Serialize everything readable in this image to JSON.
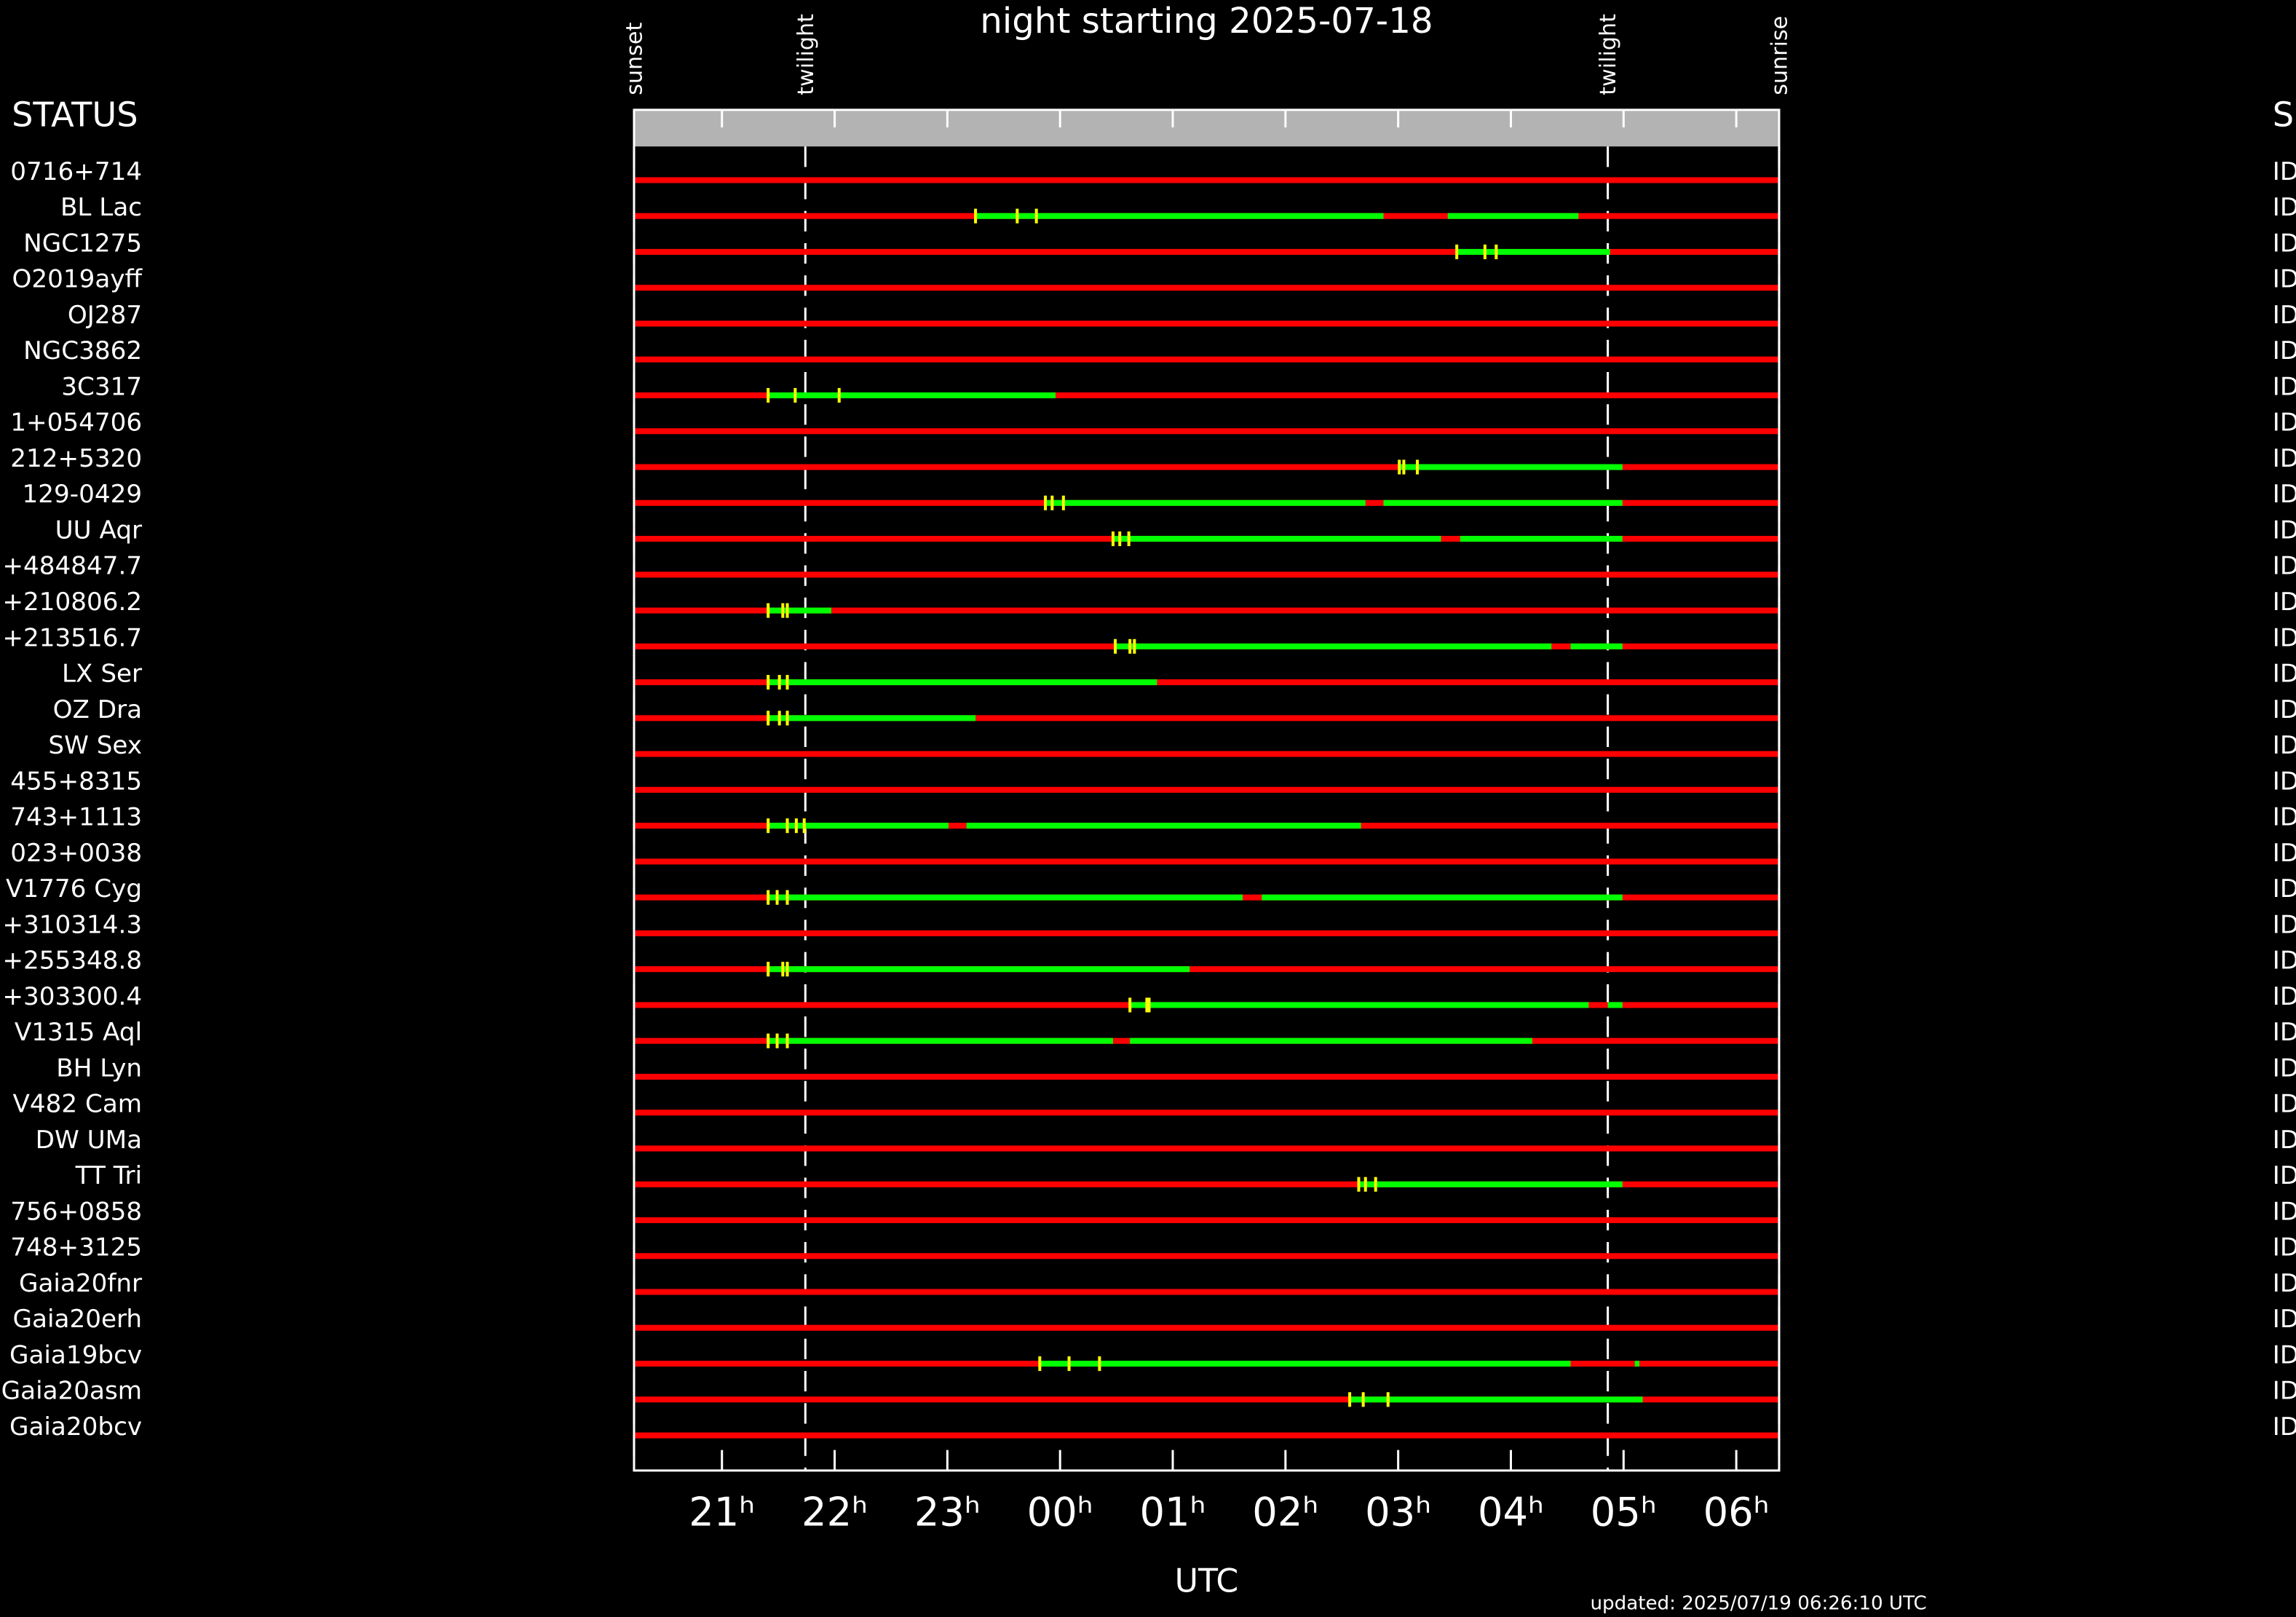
{
  "chart_data": {
    "type": "timeline",
    "title": "night starting 2025-07-18",
    "xlabel": "UTC",
    "footer": "updated: 2025/07/19 06:26:10 UTC",
    "status_header": "STATUS",
    "status_header_right": "S",
    "xlim": [
      20.22,
      30.38
    ],
    "xticks": [
      {
        "value": 21,
        "label": "21ʰ"
      },
      {
        "value": 22,
        "label": "22ʰ"
      },
      {
        "value": 23,
        "label": "23ʰ"
      },
      {
        "value": 24,
        "label": "00ʰ"
      },
      {
        "value": 25,
        "label": "01ʰ"
      },
      {
        "value": 26,
        "label": "02ʰ"
      },
      {
        "value": 27,
        "label": "03ʰ"
      },
      {
        "value": 28,
        "label": "04ʰ"
      },
      {
        "value": 29,
        "label": "05ʰ"
      },
      {
        "value": 30,
        "label": "06ʰ"
      }
    ],
    "events": [
      {
        "label": "sunset",
        "value": 20.22
      },
      {
        "label": "twilight",
        "value": 21.74
      },
      {
        "label": "twilight",
        "value": 28.86
      },
      {
        "label": "sunrise",
        "value": 30.38
      }
    ],
    "visible_color": "#00ff00",
    "hidden_color": "#ff0000",
    "marker_color": "#ffff00",
    "rows": [
      {
        "name": "0716+714",
        "status": "ID",
        "segments": [],
        "markers": []
      },
      {
        "name": "BL Lac",
        "status": "ID",
        "segments": [
          [
            23.25,
            26.87
          ],
          [
            27.44,
            28.6
          ]
        ],
        "markers": [
          23.25,
          23.62,
          23.79
        ]
      },
      {
        "name": "NGC1275",
        "status": "ID",
        "segments": [
          [
            27.52,
            28.88
          ]
        ],
        "markers": [
          27.52,
          27.77,
          27.87
        ]
      },
      {
        "name": "O2019ayff",
        "status": "ID",
        "segments": [],
        "markers": []
      },
      {
        "name": "OJ287",
        "status": "ID",
        "segments": [],
        "markers": []
      },
      {
        "name": "NGC3862",
        "status": "ID",
        "segments": [],
        "markers": []
      },
      {
        "name": "3C317",
        "status": "ID",
        "segments": [
          [
            21.41,
            23.96
          ]
        ],
        "markers": [
          21.41,
          21.65,
          22.04
        ]
      },
      {
        "name": "1+054706",
        "status": "ID",
        "segments": [],
        "markers": []
      },
      {
        "name": "212+5320",
        "status": "ID",
        "segments": [
          [
            27.01,
            28.99
          ]
        ],
        "markers": [
          27.01,
          27.05,
          27.17
        ]
      },
      {
        "name": "129-0429",
        "status": "ID",
        "segments": [
          [
            23.87,
            26.71
          ],
          [
            26.87,
            28.99
          ]
        ],
        "markers": [
          23.87,
          23.93,
          24.03
        ]
      },
      {
        "name": "UU Aqr",
        "status": "ID",
        "segments": [
          [
            24.47,
            27.38
          ],
          [
            27.55,
            28.99
          ]
        ],
        "markers": [
          24.47,
          24.53,
          24.61
        ]
      },
      {
        "name": "+484847.7",
        "status": "ID",
        "segments": [],
        "markers": []
      },
      {
        "name": "+210806.2",
        "status": "ID",
        "segments": [
          [
            21.41,
            21.97
          ]
        ],
        "markers": [
          21.41,
          21.54,
          21.58
        ]
      },
      {
        "name": "+213516.7",
        "status": "ID",
        "segments": [
          [
            24.49,
            28.36
          ],
          [
            28.53,
            28.99
          ]
        ],
        "markers": [
          24.49,
          24.62,
          24.66
        ]
      },
      {
        "name": "LX Ser",
        "status": "ID",
        "segments": [
          [
            21.41,
            24.86
          ]
        ],
        "markers": [
          21.41,
          21.51,
          21.58
        ]
      },
      {
        "name": "OZ Dra",
        "status": "ID",
        "segments": [
          [
            21.41,
            23.25
          ]
        ],
        "markers": [
          21.41,
          21.51,
          21.58
        ]
      },
      {
        "name": "SW Sex",
        "status": "ID",
        "segments": [],
        "markers": []
      },
      {
        "name": "455+8315",
        "status": "ID",
        "segments": [],
        "markers": []
      },
      {
        "name": "743+1113",
        "status": "ID",
        "segments": [
          [
            21.41,
            23.01
          ],
          [
            23.17,
            26.67
          ]
        ],
        "markers": [
          21.41,
          21.58,
          21.66,
          21.73
        ]
      },
      {
        "name": "023+0038",
        "status": "ID",
        "segments": [],
        "markers": []
      },
      {
        "name": "V1776 Cyg",
        "status": "ID",
        "segments": [
          [
            21.41,
            25.62
          ],
          [
            25.79,
            28.99
          ]
        ],
        "markers": [
          21.41,
          21.49,
          21.58
        ]
      },
      {
        "name": "+310314.3",
        "status": "ID",
        "segments": [],
        "markers": []
      },
      {
        "name": "+255348.8",
        "status": "ID",
        "segments": [
          [
            21.41,
            25.15
          ]
        ],
        "markers": [
          21.41,
          21.54,
          21.58
        ]
      },
      {
        "name": "+303300.4",
        "status": "ID",
        "segments": [
          [
            24.62,
            28.69
          ],
          [
            28.86,
            28.99
          ]
        ],
        "markers": [
          24.62,
          24.77,
          24.79
        ]
      },
      {
        "name": "V1315 Aql",
        "status": "ID",
        "segments": [
          [
            21.41,
            24.47
          ],
          [
            24.62,
            28.19
          ]
        ],
        "markers": [
          21.41,
          21.49,
          21.58
        ]
      },
      {
        "name": "BH Lyn",
        "status": "ID",
        "segments": [],
        "markers": []
      },
      {
        "name": "V482 Cam",
        "status": "ID",
        "segments": [],
        "markers": []
      },
      {
        "name": "DW UMa",
        "status": "ID",
        "segments": [],
        "markers": []
      },
      {
        "name": "TT Tri",
        "status": "ID",
        "segments": [
          [
            26.65,
            28.99
          ]
        ],
        "markers": [
          26.65,
          26.71,
          26.8
        ]
      },
      {
        "name": "756+0858",
        "status": "ID",
        "segments": [],
        "markers": []
      },
      {
        "name": "748+3125",
        "status": "ID",
        "segments": [],
        "markers": []
      },
      {
        "name": "Gaia20fnr",
        "status": "ID",
        "segments": [],
        "markers": []
      },
      {
        "name": "Gaia20erh",
        "status": "ID",
        "segments": [],
        "markers": []
      },
      {
        "name": "Gaia19bcv",
        "status": "ID",
        "segments": [
          [
            23.82,
            28.53
          ],
          [
            29.1,
            29.14
          ]
        ],
        "markers": [
          23.82,
          24.08,
          24.35
        ]
      },
      {
        "name": "Gaia20asm",
        "status": "ID",
        "segments": [
          [
            26.57,
            29.17
          ]
        ],
        "markers": [
          26.57,
          26.69,
          26.91
        ]
      },
      {
        "name": "Gaia20bcv",
        "status": "ID",
        "segments": [],
        "markers": []
      }
    ]
  }
}
